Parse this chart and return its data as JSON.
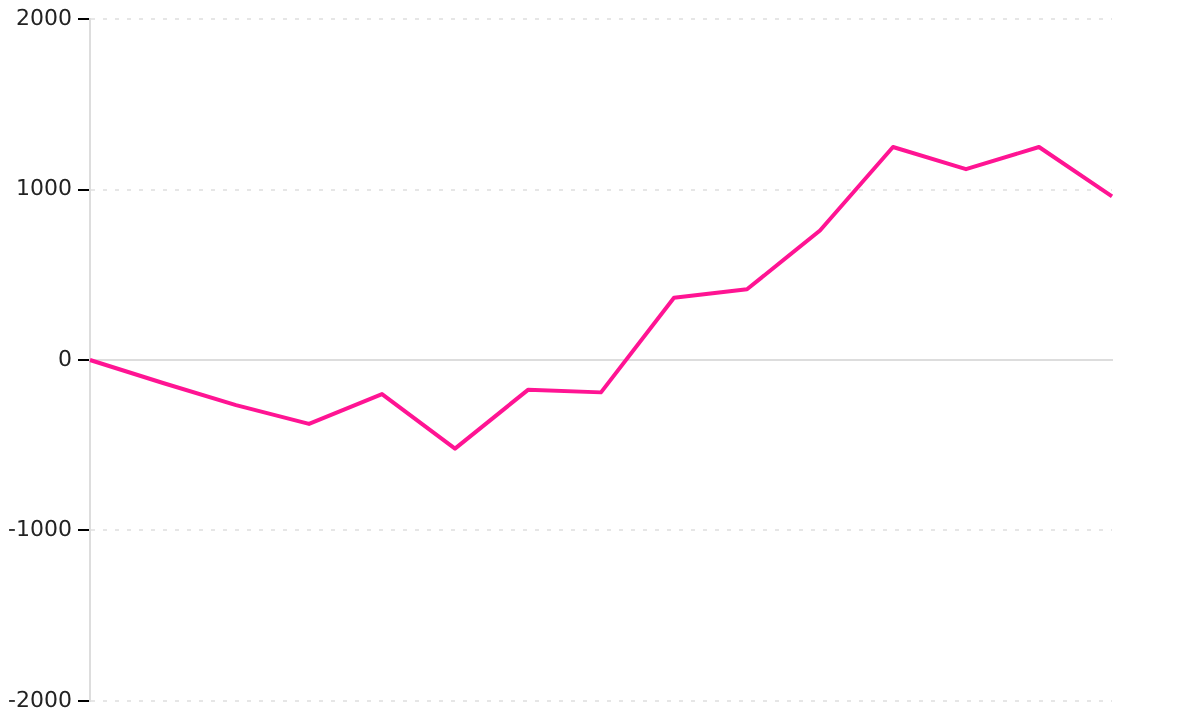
{
  "chart_data": {
    "type": "line",
    "categories": [
      null,
      null,
      null,
      null,
      null,
      null,
      null,
      null,
      null,
      null,
      null,
      null,
      null,
      null,
      null
    ],
    "series": [
      {
        "color": "#ff1493",
        "values": [
          0,
          -135,
          -265,
          -375,
          -200,
          -520,
          -175,
          -190,
          365,
          415,
          760,
          1250,
          1120,
          1250,
          960
        ]
      }
    ],
    "ylim": [
      -2000,
      2000
    ],
    "yticks": [
      -2000,
      -1000,
      0,
      1000,
      2000
    ],
    "grid": "y",
    "tick_labels": "y",
    "legend": false,
    "marker": "none",
    "line_style": "solid"
  }
}
